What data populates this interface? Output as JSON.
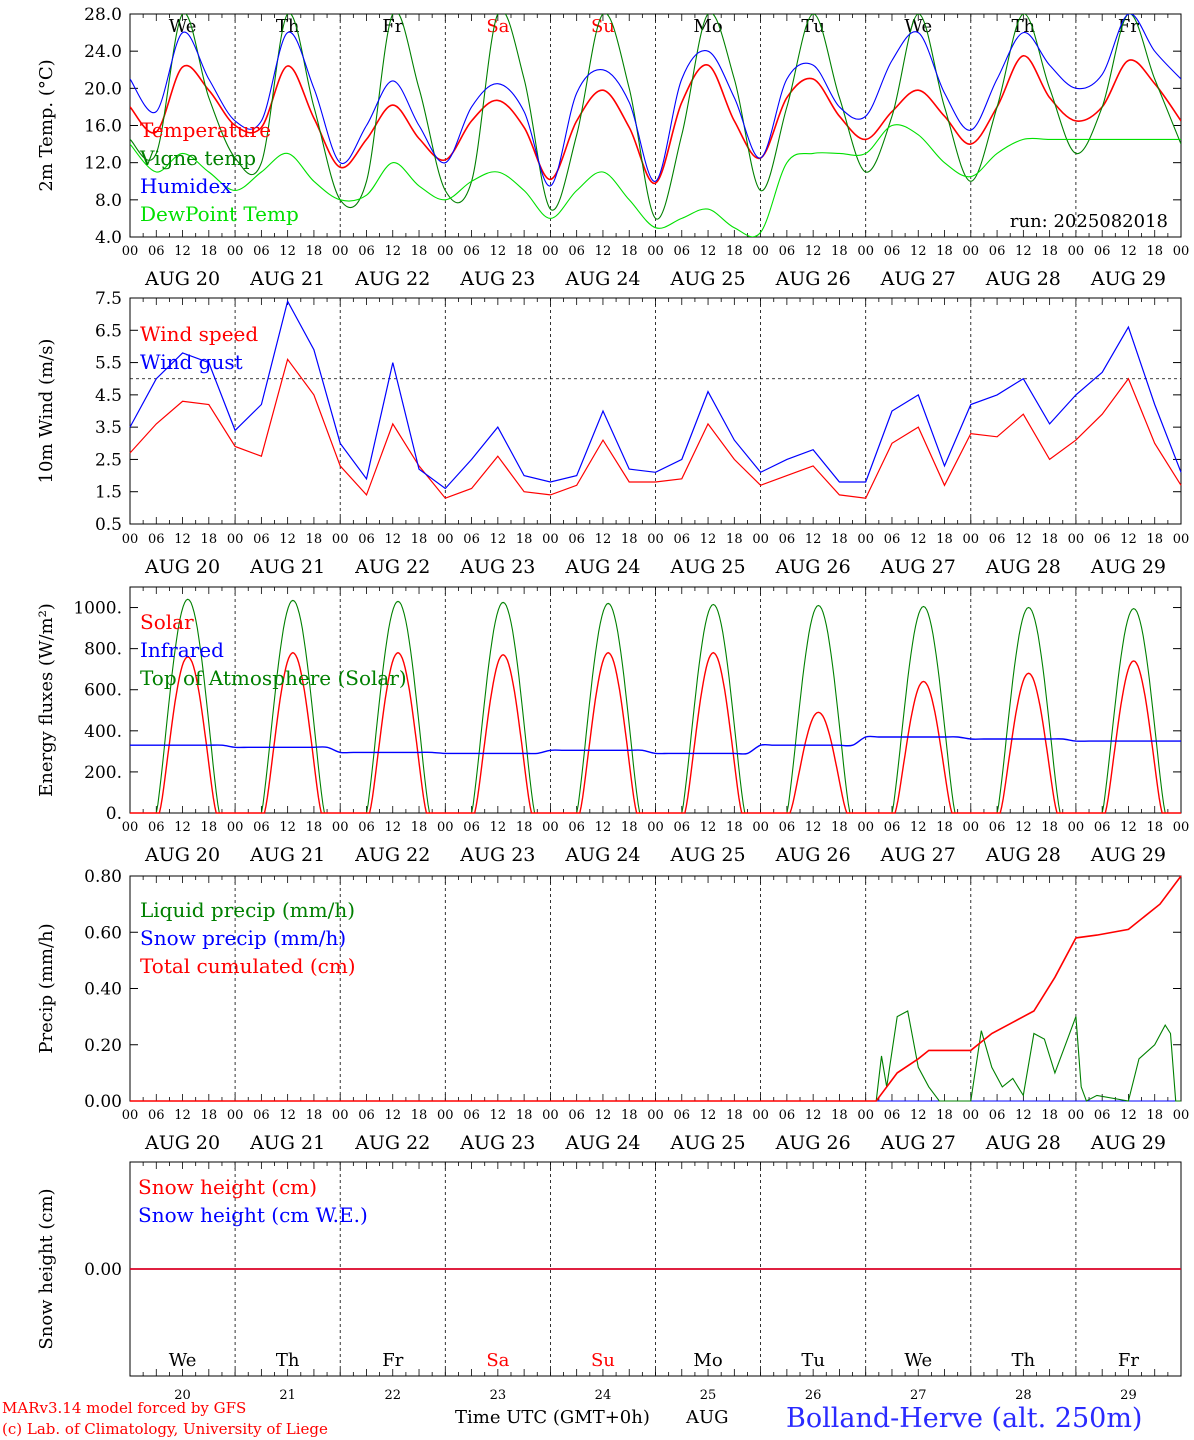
{
  "days": [
    "We",
    "Th",
    "Fr",
    "Sa",
    "Su",
    "Mo",
    "Tu",
    "We",
    "Th",
    "Fr"
  ],
  "weekend_days": [
    3,
    4
  ],
  "date_labels": [
    "AUG 20",
    "AUG 21",
    "AUG 22",
    "AUG 23",
    "AUG 24",
    "AUG 25",
    "AUG 26",
    "AUG 27",
    "AUG 28",
    "AUG 29"
  ],
  "day_numbers": [
    "20",
    "21",
    "22",
    "23",
    "24",
    "25",
    "26",
    "27",
    "28",
    "29"
  ],
  "hour_labels": [
    "00",
    "06",
    "12",
    "18"
  ],
  "final_hour_label": "00",
  "colors": {
    "red": "#ff0000",
    "green": "#008000",
    "blue": "#0000ff",
    "lightgreen": "#00e000"
  },
  "footer": {
    "credit1": "MARv3.14 model forced by GFS",
    "credit2": "(c) Lab. of Climatology, University of Liege",
    "xlabel": "Time UTC (GMT+0h)",
    "month": "AUG",
    "station": "Bolland-Herve (alt. 250m)"
  },
  "chart_data": [
    {
      "type": "line",
      "ylabel": "2m Temp. (°C)",
      "ylim": [
        4,
        28
      ],
      "yticks": [
        "4.0",
        "8.0",
        "12.0",
        "16.0",
        "20.0",
        "24.0",
        "28.0"
      ],
      "run_label": "run: 2025082018",
      "x_days": [
        0,
        0.25,
        0.5,
        0.75,
        1,
        1.25,
        1.5,
        1.75,
        2,
        2.25,
        2.5,
        2.75,
        3,
        3.25,
        3.5,
        3.75,
        4,
        4.25,
        4.5,
        4.75,
        5,
        5.25,
        5.5,
        5.75,
        6,
        6.25,
        6.5,
        6.75,
        7,
        7.25,
        7.5,
        7.75,
        8,
        8.25,
        8.5,
        8.75,
        9,
        9.25,
        9.5,
        9.75,
        10
      ],
      "series": [
        {
          "name": "Temperature",
          "color": "red",
          "values": [
            18,
            15.3,
            22.3,
            19.8,
            16,
            15.8,
            22.4,
            16.8,
            11.5,
            14.5,
            18.2,
            14.6,
            12.3,
            16.5,
            18.7,
            15.8,
            10.2,
            16.5,
            19.8,
            15.8,
            9.8,
            18.5,
            22.5,
            16.5,
            12.5,
            19,
            21,
            17,
            14.5,
            17.5,
            19.8,
            17,
            14,
            18,
            23.5,
            19,
            16.5,
            18,
            23,
            20.5,
            16.5
          ]
        },
        {
          "name": "Vigne temp",
          "color": "green",
          "values": [
            14.5,
            13,
            28,
            19,
            12.5,
            12,
            28,
            18,
            8,
            10,
            28,
            20,
            9,
            10,
            28,
            21,
            7,
            15,
            28,
            20,
            6,
            15,
            28,
            21,
            9,
            18,
            28,
            19,
            11,
            17,
            28,
            18,
            10,
            18,
            28,
            20,
            13,
            18,
            28,
            21,
            14
          ]
        },
        {
          "name": "Humidex",
          "color": "blue",
          "values": [
            21,
            17.5,
            26,
            21,
            16.5,
            16.5,
            26,
            20,
            12,
            16,
            20.8,
            16,
            12,
            18,
            20.5,
            17.5,
            9.5,
            19.5,
            22,
            18.5,
            10,
            21,
            24,
            19,
            12.5,
            21,
            22.5,
            18,
            17,
            23,
            26,
            19.5,
            15.5,
            21,
            26,
            22.5,
            20,
            21.5,
            28,
            24,
            21
          ]
        },
        {
          "name": "DewPoint Temp",
          "color": "lightgreen",
          "values": [
            14,
            11,
            13,
            11,
            9,
            11,
            13,
            10,
            8,
            8.5,
            12,
            9.5,
            8,
            10,
            11,
            9,
            6,
            9,
            11,
            8,
            5,
            6,
            7,
            5,
            4.5,
            12,
            13,
            13,
            13,
            16,
            15,
            12,
            10.5,
            13,
            14.5,
            14.5,
            14.5,
            14.5,
            14.5,
            14.5,
            14.5
          ]
        }
      ]
    },
    {
      "type": "line",
      "ylabel": "10m Wind (m/s)",
      "ylim": [
        0.5,
        7.5
      ],
      "yticks": [
        "0.5",
        "1.5",
        "2.5",
        "3.5",
        "4.5",
        "5.5",
        "6.5",
        "7.5"
      ],
      "reference_line": 5,
      "x_days": [
        0,
        0.25,
        0.5,
        0.75,
        1,
        1.25,
        1.5,
        1.75,
        2,
        2.25,
        2.5,
        2.75,
        3,
        3.25,
        3.5,
        3.75,
        4,
        4.25,
        4.5,
        4.75,
        5,
        5.25,
        5.5,
        5.75,
        6,
        6.25,
        6.5,
        6.75,
        7,
        7.25,
        7.5,
        7.75,
        8,
        8.25,
        8.5,
        8.75,
        9,
        9.25,
        9.5,
        9.75,
        10
      ],
      "series": [
        {
          "name": "Wind speed",
          "color": "red",
          "values": [
            2.7,
            3.6,
            4.3,
            4.2,
            2.9,
            2.6,
            5.6,
            4.5,
            2.3,
            1.4,
            3.6,
            2.3,
            1.3,
            1.6,
            2.6,
            1.5,
            1.4,
            1.7,
            3.1,
            1.8,
            1.8,
            1.9,
            3.6,
            2.5,
            1.7,
            2,
            2.3,
            1.4,
            1.3,
            3,
            3.5,
            1.7,
            3.3,
            3.2,
            3.9,
            2.5,
            3.1,
            3.9,
            5,
            3,
            1.7
          ]
        },
        {
          "name": "Wind gust",
          "color": "blue",
          "values": [
            3.5,
            5,
            5.8,
            5.5,
            3.4,
            4.2,
            7.4,
            5.9,
            3,
            1.9,
            5.5,
            2.2,
            1.6,
            2.5,
            3.5,
            2,
            1.8,
            2,
            4,
            2.2,
            2.1,
            2.5,
            4.6,
            3.1,
            2.1,
            2.5,
            2.8,
            1.8,
            1.8,
            4,
            4.5,
            2.3,
            4.2,
            4.5,
            5,
            3.6,
            4.5,
            5.2,
            6.6,
            4.2,
            2.1
          ]
        }
      ]
    },
    {
      "type": "line",
      "ylabel": "Energy fluxes (W/m²)",
      "ylim": [
        0,
        1100
      ],
      "yticks": [
        "0.",
        "200.",
        "400.",
        "600.",
        "800.",
        "1000."
      ],
      "peak_day_fraction": 0.55,
      "series": [
        {
          "name": "Solar",
          "color": "red",
          "daily_peaks": [
            760,
            780,
            780,
            770,
            780,
            780,
            490,
            640,
            680,
            740
          ]
        },
        {
          "name": "Infrared",
          "color": "blue",
          "daily_levels": [
            330,
            320,
            295,
            290,
            305,
            290,
            330,
            370,
            360,
            350
          ]
        },
        {
          "name": "Top of Atmosphere (Solar)",
          "color": "green",
          "daily_peaks": [
            1040,
            1035,
            1030,
            1025,
            1020,
            1015,
            1010,
            1005,
            1000,
            995
          ]
        }
      ]
    },
    {
      "type": "line",
      "ylabel": "Precip (mm/h)",
      "ylim": [
        0,
        0.8
      ],
      "yticks": [
        "0.00",
        "0.20",
        "0.40",
        "0.60",
        "0.80"
      ],
      "series": [
        {
          "name": "Liquid precip (mm/h)",
          "color": "green",
          "x_days": [
            0,
            7.1,
            7.15,
            7.2,
            7.3,
            7.4,
            7.5,
            7.6,
            7.7,
            8,
            8.1,
            8.2,
            8.3,
            8.4,
            8.5,
            8.6,
            8.7,
            8.8,
            8.9,
            9,
            9.05,
            9.1,
            9.2,
            9.5,
            9.6,
            9.75,
            9.85,
            9.9,
            9.95,
            10
          ],
          "values": [
            0,
            0,
            0.16,
            0.05,
            0.3,
            0.32,
            0.12,
            0.05,
            0,
            0,
            0.25,
            0.12,
            0.05,
            0.08,
            0.02,
            0.24,
            0.22,
            0.1,
            0.2,
            0.3,
            0.05,
            0,
            0.02,
            0,
            0.15,
            0.2,
            0.27,
            0.24,
            0,
            0
          ]
        },
        {
          "name": "Snow precip (mm/h)",
          "color": "blue",
          "x_days": [
            0,
            10
          ],
          "values": [
            0,
            0
          ]
        },
        {
          "name": "Total cumulated (cm)",
          "color": "red",
          "x_days": [
            0,
            7.1,
            7.3,
            7.5,
            7.6,
            7.8,
            8,
            8.2,
            8.4,
            8.6,
            8.8,
            9,
            9.2,
            9.5,
            9.8,
            10
          ],
          "values": [
            0,
            0,
            0.1,
            0.15,
            0.18,
            0.18,
            0.18,
            0.24,
            0.28,
            0.32,
            0.44,
            0.58,
            0.59,
            0.61,
            0.7,
            0.8
          ]
        }
      ]
    },
    {
      "type": "line",
      "ylabel": "Snow height (cm)",
      "ylim": [
        -1,
        1
      ],
      "yticks": [
        "0.00"
      ],
      "series": [
        {
          "name": "Snow height (cm)",
          "color": "red",
          "x_days": [
            0,
            10
          ],
          "values": [
            0,
            0
          ]
        },
        {
          "name": "Snow height (cm W.E.)",
          "color": "blue",
          "x_days": [
            0,
            10
          ],
          "values": [
            0,
            0
          ]
        }
      ]
    }
  ]
}
